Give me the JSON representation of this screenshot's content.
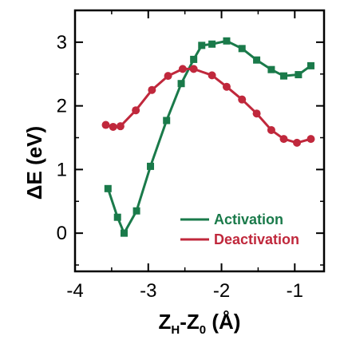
{
  "chart_data": {
    "type": "line",
    "xlabel": {
      "main": "Z",
      "sub1": "H",
      "mid": "-Z",
      "sub2": "0",
      "tail": " (Å)"
    },
    "ylabel": "ΔE (eV)",
    "xlim": [
      -4,
      -0.6
    ],
    "ylim": [
      -0.6,
      3.5
    ],
    "xticks": [
      -4,
      -3,
      -2,
      -1
    ],
    "yticks": [
      0,
      1,
      2,
      3
    ],
    "grid": false,
    "legend_position": "lower-right",
    "series": [
      {
        "name": "Activation",
        "color": "#1a7a4a",
        "marker": "square",
        "x": [
          -3.55,
          -3.42,
          -3.33,
          -3.16,
          -2.97,
          -2.75,
          -2.55,
          -2.38,
          -2.27,
          -2.13,
          -1.93,
          -1.72,
          -1.52,
          -1.32,
          -1.15,
          -0.95,
          -0.78
        ],
        "y": [
          0.7,
          0.25,
          0.0,
          0.35,
          1.05,
          1.77,
          2.35,
          2.73,
          2.95,
          2.97,
          3.02,
          2.9,
          2.72,
          2.57,
          2.47,
          2.49,
          2.63
        ]
      },
      {
        "name": "Deactivation",
        "color": "#c0283c",
        "marker": "circle",
        "x": [
          -3.58,
          -3.48,
          -3.38,
          -3.17,
          -2.95,
          -2.73,
          -2.53,
          -2.38,
          -2.13,
          -1.93,
          -1.72,
          -1.52,
          -1.32,
          -1.15,
          -0.97,
          -0.78
        ],
        "y": [
          1.7,
          1.67,
          1.68,
          1.93,
          2.25,
          2.47,
          2.58,
          2.58,
          2.48,
          2.3,
          2.1,
          1.88,
          1.62,
          1.48,
          1.42,
          1.48
        ]
      }
    ]
  }
}
